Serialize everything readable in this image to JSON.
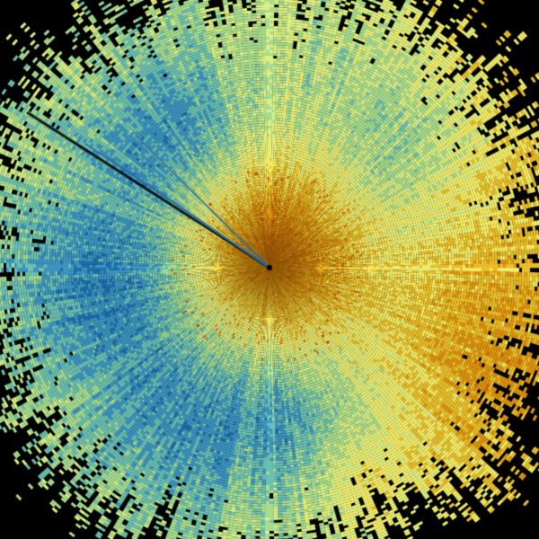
{
  "image": {
    "kind": "radar-ppi-scan",
    "background_color": "#000000",
    "palette": [
      "#1f6fae",
      "#3d95c0",
      "#6cc0b0",
      "#a9dc8e",
      "#dcef84",
      "#f2ec6a",
      "#e9bf2a",
      "#de9410",
      "#cf6a0a"
    ]
  }
}
